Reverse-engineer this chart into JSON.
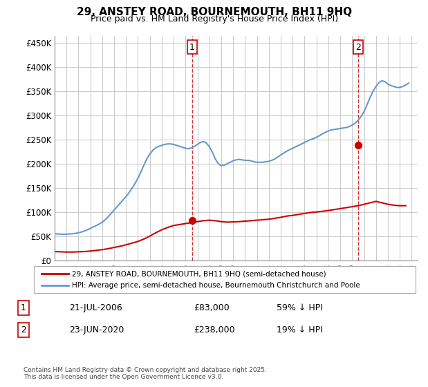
{
  "title": "29, ANSTEY ROAD, BOURNEMOUTH, BH11 9HQ",
  "subtitle": "Price paid vs. HM Land Registry's House Price Index (HPI)",
  "ylabel_ticks": [
    "£0",
    "£50K",
    "£100K",
    "£150K",
    "£200K",
    "£250K",
    "£300K",
    "£350K",
    "£400K",
    "£450K"
  ],
  "ytick_values": [
    0,
    50000,
    100000,
    150000,
    200000,
    250000,
    300000,
    350000,
    400000,
    450000
  ],
  "ylim": [
    0,
    465000
  ],
  "xlim_start": 1995.0,
  "xlim_end": 2025.5,
  "transaction1_x": 2006.55,
  "transaction1_y": 83000,
  "transaction2_x": 2020.48,
  "transaction2_y": 238000,
  "legend_line1": "29, ANSTEY ROAD, BOURNEMOUTH, BH11 9HQ (semi-detached house)",
  "legend_line2": "HPI: Average price, semi-detached house, Bournemouth Christchurch and Poole",
  "table_row1_num": "1",
  "table_row1_date": "21-JUL-2006",
  "table_row1_price": "£83,000",
  "table_row1_hpi": "59% ↓ HPI",
  "table_row2_num": "2",
  "table_row2_date": "23-JUN-2020",
  "table_row2_price": "£238,000",
  "table_row2_hpi": "19% ↓ HPI",
  "footnote": "Contains HM Land Registry data © Crown copyright and database right 2025.\nThis data is licensed under the Open Government Licence v3.0.",
  "line_red_color": "#cc0000",
  "line_blue_color": "#6699cc",
  "dashed_line_color": "#cc0000",
  "background_color": "#ffffff",
  "grid_color": "#cccccc",
  "hpi_data_years": [
    1995.0,
    1995.25,
    1995.5,
    1995.75,
    1996.0,
    1996.25,
    1996.5,
    1996.75,
    1997.0,
    1997.25,
    1997.5,
    1997.75,
    1998.0,
    1998.25,
    1998.5,
    1998.75,
    1999.0,
    1999.25,
    1999.5,
    1999.75,
    2000.0,
    2000.25,
    2000.5,
    2000.75,
    2001.0,
    2001.25,
    2001.5,
    2001.75,
    2002.0,
    2002.25,
    2002.5,
    2002.75,
    2003.0,
    2003.25,
    2003.5,
    2003.75,
    2004.0,
    2004.25,
    2004.5,
    2004.75,
    2005.0,
    2005.25,
    2005.5,
    2005.75,
    2006.0,
    2006.25,
    2006.5,
    2006.75,
    2007.0,
    2007.25,
    2007.5,
    2007.75,
    2008.0,
    2008.25,
    2008.5,
    2008.75,
    2009.0,
    2009.25,
    2009.5,
    2009.75,
    2010.0,
    2010.25,
    2010.5,
    2010.75,
    2011.0,
    2011.25,
    2011.5,
    2011.75,
    2012.0,
    2012.25,
    2012.5,
    2012.75,
    2013.0,
    2013.25,
    2013.5,
    2013.75,
    2014.0,
    2014.25,
    2014.5,
    2014.75,
    2015.0,
    2015.25,
    2015.5,
    2015.75,
    2016.0,
    2016.25,
    2016.5,
    2016.75,
    2017.0,
    2017.25,
    2017.5,
    2017.75,
    2018.0,
    2018.25,
    2018.5,
    2018.75,
    2019.0,
    2019.25,
    2019.5,
    2019.75,
    2020.0,
    2020.25,
    2020.5,
    2020.75,
    2021.0,
    2021.25,
    2021.5,
    2021.75,
    2022.0,
    2022.25,
    2022.5,
    2022.75,
    2023.0,
    2023.25,
    2023.5,
    2023.75,
    2024.0,
    2024.25,
    2024.5,
    2024.75
  ],
  "hpi_data_values": [
    55000,
    54500,
    54000,
    53800,
    54000,
    54500,
    55000,
    55800,
    57000,
    58500,
    60500,
    63000,
    66000,
    69000,
    72000,
    75000,
    79000,
    84000,
    90000,
    97000,
    104000,
    111000,
    118000,
    125000,
    132000,
    140000,
    149000,
    159000,
    170000,
    183000,
    197000,
    210000,
    220000,
    228000,
    233000,
    236000,
    238000,
    240000,
    241000,
    241000,
    240000,
    238000,
    236000,
    234000,
    232000,
    231000,
    233000,
    236000,
    240000,
    244000,
    246000,
    243000,
    235000,
    224000,
    210000,
    200000,
    196000,
    197000,
    200000,
    203000,
    206000,
    208000,
    209000,
    208000,
    207000,
    207000,
    206000,
    204000,
    203000,
    203000,
    203000,
    204000,
    205000,
    207000,
    210000,
    214000,
    218000,
    222000,
    226000,
    229000,
    232000,
    235000,
    238000,
    241000,
    244000,
    247000,
    250000,
    252000,
    255000,
    258000,
    262000,
    265000,
    268000,
    270000,
    271000,
    272000,
    273000,
    274000,
    275000,
    277000,
    280000,
    284000,
    290000,
    298000,
    308000,
    322000,
    337000,
    350000,
    360000,
    368000,
    372000,
    370000,
    365000,
    362000,
    360000,
    358000,
    358000,
    360000,
    363000,
    367000
  ],
  "price_data_years": [
    1995.0,
    1995.5,
    1996.0,
    1996.5,
    1997.0,
    1997.5,
    1998.0,
    1998.5,
    1999.0,
    1999.5,
    2000.0,
    2000.5,
    2001.0,
    2001.5,
    2002.0,
    2002.5,
    2003.0,
    2003.5,
    2004.0,
    2004.5,
    2005.0,
    2005.5,
    2006.0,
    2006.5,
    2007.0,
    2007.5,
    2008.0,
    2008.5,
    2009.0,
    2009.5,
    2010.0,
    2010.5,
    2011.0,
    2011.5,
    2012.0,
    2012.5,
    2013.0,
    2013.5,
    2014.0,
    2014.5,
    2015.0,
    2015.5,
    2016.0,
    2016.5,
    2017.0,
    2017.5,
    2018.0,
    2018.5,
    2019.0,
    2019.5,
    2020.0,
    2020.5,
    2021.0,
    2021.5,
    2022.0,
    2022.5,
    2023.0,
    2023.5,
    2024.0,
    2024.5
  ],
  "price_data_values": [
    18000,
    17500,
    17000,
    17000,
    17500,
    18000,
    19000,
    20500,
    22000,
    24000,
    26500,
    29000,
    32000,
    35500,
    39000,
    44000,
    50000,
    57000,
    63000,
    68000,
    72000,
    74000,
    76000,
    78000,
    80000,
    82000,
    83000,
    82000,
    80000,
    79000,
    79500,
    80000,
    81000,
    82000,
    83000,
    84000,
    85000,
    87000,
    89000,
    91500,
    93000,
    95000,
    97000,
    99000,
    100000,
    101500,
    103000,
    105000,
    107000,
    109000,
    111000,
    113000,
    116000,
    119000,
    122000,
    119000,
    116000,
    114000,
    113000,
    113000
  ]
}
